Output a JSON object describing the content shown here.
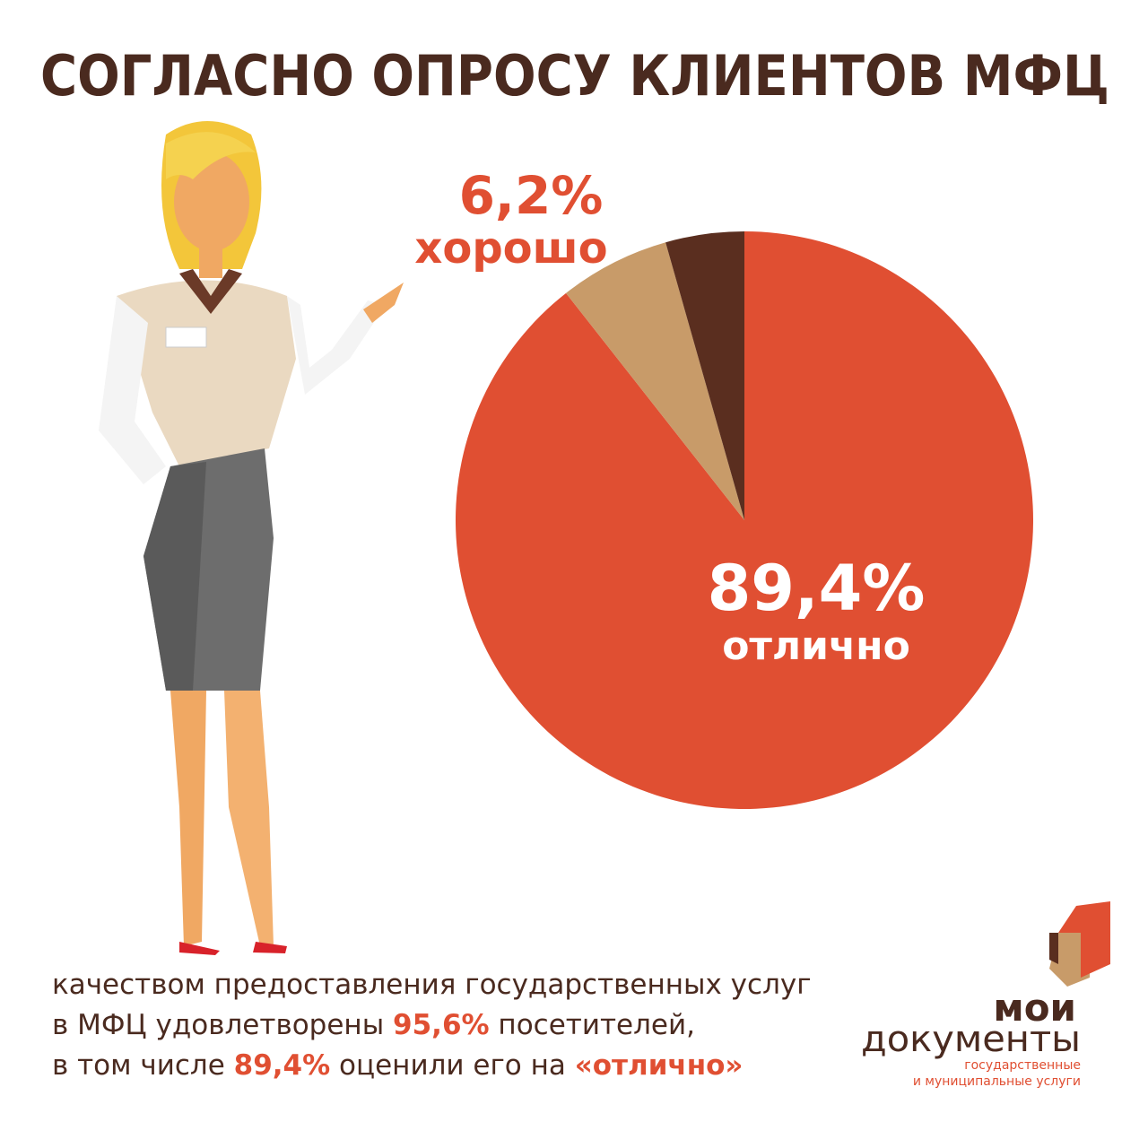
{
  "chart_data": {
    "type": "pie",
    "title": "СОГЛАСНО ОПРОСУ КЛИЕНТОВ МФЦ",
    "categories": [
      "отлично",
      "хорошо",
      null
    ],
    "values": [
      89.4,
      6.2,
      4.4
    ],
    "value_labels": [
      "89,4%",
      "6,2%",
      null
    ],
    "colors": [
      "#e04f32",
      "#c89b69",
      "#5a2e1f"
    ]
  },
  "footer": {
    "lines": [
      [
        {
          "text": "качеством предоставления государственных услуг"
        }
      ],
      [
        {
          "text": "в МФЦ удовлетворены "
        },
        {
          "text": "95,6%",
          "color": "#e04f32"
        },
        {
          "text": " посетителей,"
        }
      ],
      [
        {
          "text": "в том числе "
        },
        {
          "text": "89,4%",
          "color": "#e04f32"
        },
        {
          "text": " оценили его на "
        },
        {
          "text": "«отлично»",
          "color": "#e04f32"
        }
      ]
    ]
  },
  "logo": {
    "line1": "мои",
    "line2": "документы",
    "line3": "государственные",
    "line4": "и муниципальные услуги"
  }
}
